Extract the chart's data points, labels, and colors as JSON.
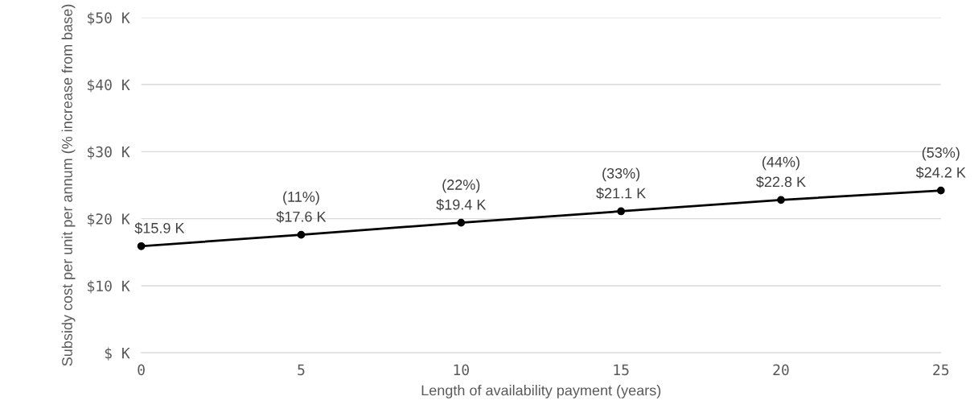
{
  "chart_data": {
    "type": "line",
    "xlabel": "Length of availability payment (years)",
    "ylabel": "Subsidy cost per unit per annum (% increase from base)",
    "x": [
      0,
      5,
      10,
      15,
      20,
      25
    ],
    "series": [
      {
        "color": "#000000",
        "values": [
          15.9,
          17.6,
          19.4,
          21.1,
          22.8,
          24.2
        ],
        "value_labels": [
          "$15.9 K",
          "(11%)\n$17.6 K",
          "(22%)\n$19.4 K",
          "(33%)\n$21.1 K",
          "(44%)\n$22.8 K",
          "(53%)\n$24.2 K"
        ]
      }
    ],
    "xlim": [
      0,
      25
    ],
    "xticks": [
      0,
      5,
      10,
      15,
      20,
      25
    ],
    "ylim": [
      0,
      50
    ],
    "yticks": [
      {
        "value": 0,
        "label": "$ K"
      },
      {
        "value": 10,
        "label": "$10 K"
      },
      {
        "value": 20,
        "label": "$20 K"
      },
      {
        "value": 30,
        "label": "$30 K"
      },
      {
        "value": 40,
        "label": "$40 K"
      },
      {
        "value": 50,
        "label": "$50 K"
      }
    ],
    "grid": "y",
    "marker": "circle",
    "line_style": "solid",
    "legend": false
  }
}
